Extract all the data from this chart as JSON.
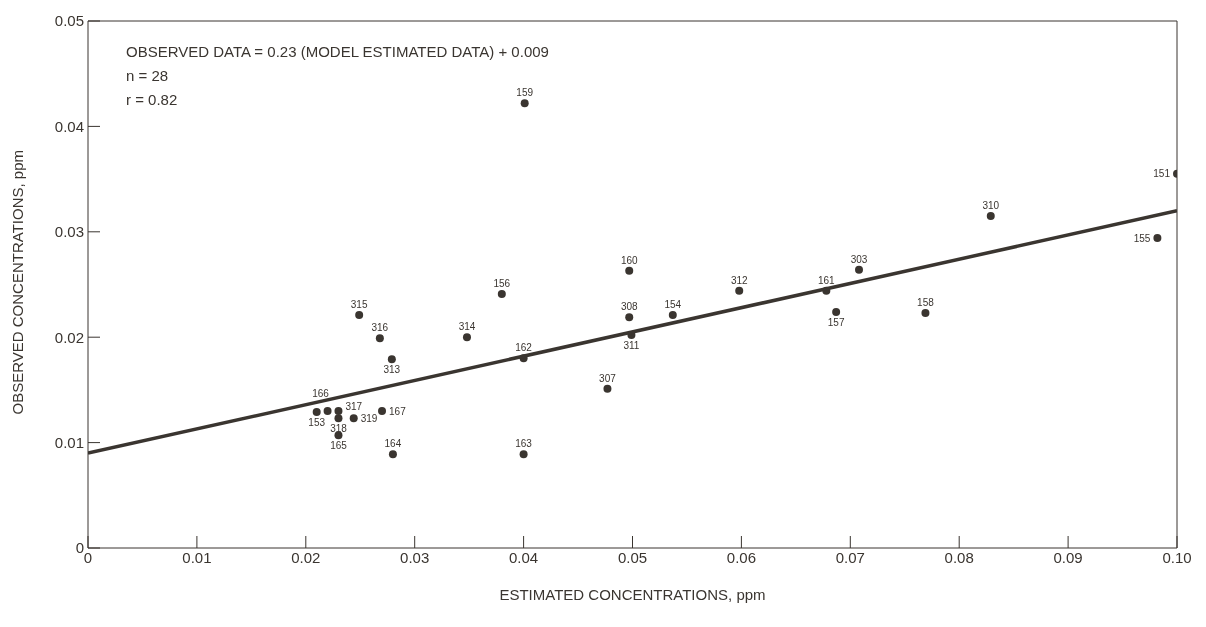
{
  "chart_data": {
    "type": "scatter",
    "xlabel": "ESTIMATED CONCENTRATIONS, ppm",
    "ylabel": "OBSERVED CONCENTRATIONS, ppm",
    "xlim": [
      0,
      0.1
    ],
    "xticks": [
      0,
      0.01,
      0.02,
      0.03,
      0.04,
      0.05,
      0.06,
      0.07,
      0.08,
      0.09,
      {
        "value": 0.1,
        "label": "0.10"
      }
    ],
    "ylim": [
      0,
      0.05
    ],
    "yticks": [
      0,
      0.01,
      0.02,
      0.03,
      0.04,
      0.05
    ],
    "grid": false,
    "legend": false,
    "marker": "circle",
    "series": [
      {
        "color": "#3a3530",
        "x": [
          0.021,
          0.022,
          0.023,
          0.023,
          0.0244,
          0.023,
          0.027,
          0.028,
          0.0249,
          0.0268,
          0.0279,
          0.0348,
          0.038,
          0.04,
          0.0401,
          0.04,
          0.0477,
          0.0497,
          0.0497,
          0.0499,
          0.0537,
          0.0598,
          0.0678,
          0.0687,
          0.0708,
          0.0769,
          0.0829,
          0.0982,
          0.1
        ],
        "values": [
          0.0129,
          0.013,
          0.013,
          0.0123,
          0.0123,
          0.0107,
          0.013,
          0.0089,
          0.0221,
          0.0199,
          0.0179,
          0.02,
          0.0241,
          0.018,
          0.0422,
          0.0089,
          0.0151,
          0.0263,
          0.0219,
          0.0202,
          0.0221,
          0.0244,
          0.0244,
          0.0224,
          0.0264,
          0.0223,
          0.0315,
          0.0294,
          0.0355
        ]
      },
      {
        "type": "line",
        "color": "#3a3530",
        "marker": "none",
        "line_style": "solid",
        "x": [
          0,
          0.1
        ],
        "values": [
          0.009,
          0.032
        ]
      }
    ],
    "annotations": [
      "OBSERVED DATA = 0.23 (MODEL ESTIMATED DATA) + 0.009",
      "n = 28",
      "r = 0.82",
      {
        "text": "153",
        "x": 0.021,
        "y": 0.0129
      },
      {
        "text": "166",
        "x": 0.022,
        "y": 0.013
      },
      {
        "text": "317",
        "x": 0.023,
        "y": 0.013
      },
      {
        "text": "318",
        "x": 0.023,
        "y": 0.0123
      },
      {
        "text": "319",
        "x": 0.0244,
        "y": 0.0123
      },
      {
        "text": "165",
        "x": 0.023,
        "y": 0.0107
      },
      {
        "text": "167",
        "x": 0.027,
        "y": 0.013
      },
      {
        "text": "164",
        "x": 0.028,
        "y": 0.0089
      },
      {
        "text": "315",
        "x": 0.0249,
        "y": 0.0221
      },
      {
        "text": "316",
        "x": 0.0268,
        "y": 0.0199
      },
      {
        "text": "313",
        "x": 0.0279,
        "y": 0.0179
      },
      {
        "text": "314",
        "x": 0.0348,
        "y": 0.02
      },
      {
        "text": "156",
        "x": 0.038,
        "y": 0.0241
      },
      {
        "text": "162",
        "x": 0.04,
        "y": 0.018
      },
      {
        "text": "159",
        "x": 0.0401,
        "y": 0.0422
      },
      {
        "text": "163",
        "x": 0.04,
        "y": 0.0089
      },
      {
        "text": "307",
        "x": 0.0477,
        "y": 0.0151
      },
      {
        "text": "160",
        "x": 0.0497,
        "y": 0.0263
      },
      {
        "text": "308",
        "x": 0.0497,
        "y": 0.0219
      },
      {
        "text": "311",
        "x": 0.0499,
        "y": 0.0202
      },
      {
        "text": "154",
        "x": 0.0537,
        "y": 0.0221
      },
      {
        "text": "312",
        "x": 0.0598,
        "y": 0.0244
      },
      {
        "text": "161",
        "x": 0.0678,
        "y": 0.0244
      },
      {
        "text": "157",
        "x": 0.0687,
        "y": 0.0224
      },
      {
        "text": "303",
        "x": 0.0708,
        "y": 0.0264
      },
      {
        "text": "158",
        "x": 0.0769,
        "y": 0.0223
      },
      {
        "text": "310",
        "x": 0.0829,
        "y": 0.0315
      },
      {
        "text": "155",
        "x": 0.0982,
        "y": 0.0294
      },
      {
        "text": "151",
        "x": 0.1,
        "y": 0.0355
      }
    ]
  }
}
